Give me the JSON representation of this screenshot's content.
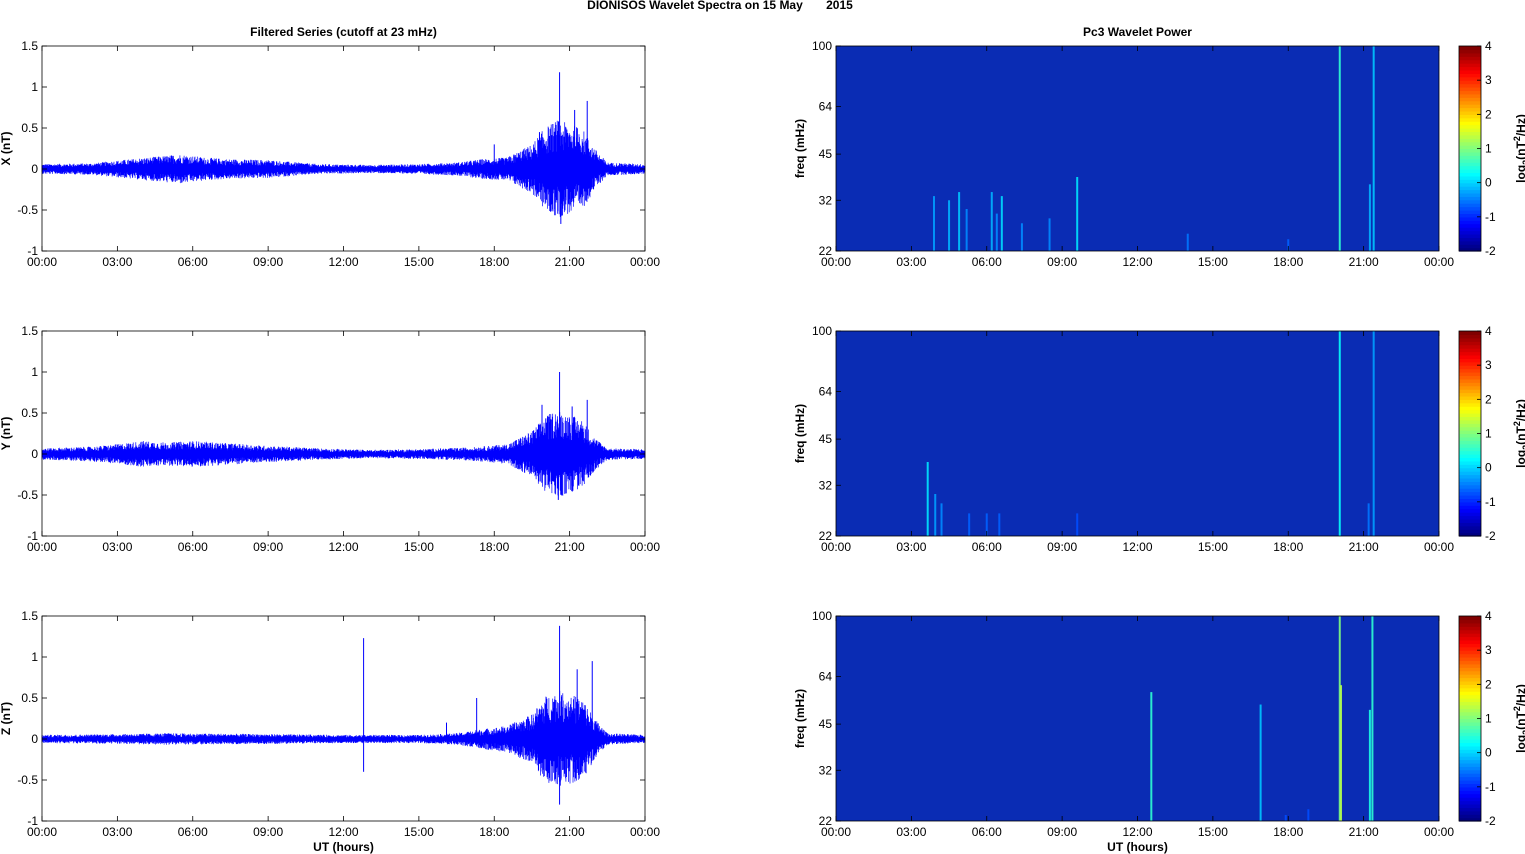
{
  "figure": {
    "title": "DIONISOS Wavelet Spectra on 15 May       2015"
  },
  "chart_data": [
    {
      "type": "line",
      "title": "Filtered Series (cutoff at 23 mHz)",
      "ylabel": "X (nT)",
      "xlabel": "",
      "xlim": [
        0,
        24
      ],
      "ylim": [
        -1,
        1.5
      ],
      "yticks": [
        "-1",
        "-0.5",
        "0",
        "0.5",
        "1",
        "1.5"
      ],
      "xticks": [
        "00:00",
        "03:00",
        "06:00",
        "09:00",
        "12:00",
        "15:00",
        "18:00",
        "21:00",
        "00:00"
      ],
      "grid": false,
      "series": [
        {
          "color": "#0000ff",
          "envelope": [
            [
              0,
              0.06
            ],
            [
              2,
              0.07
            ],
            [
              3.5,
              0.12
            ],
            [
              4.5,
              0.15
            ],
            [
              5.5,
              0.18
            ],
            [
              6.5,
              0.14
            ],
            [
              7.5,
              0.12
            ],
            [
              9,
              0.11
            ],
            [
              11,
              0.06
            ],
            [
              13,
              0.05
            ],
            [
              15,
              0.06
            ],
            [
              16.5,
              0.08
            ],
            [
              17.5,
              0.12
            ],
            [
              18.5,
              0.14
            ],
            [
              19.5,
              0.3
            ],
            [
              20,
              0.5
            ],
            [
              20.5,
              0.6
            ],
            [
              21,
              0.55
            ],
            [
              21.5,
              0.5
            ],
            [
              22,
              0.25
            ],
            [
              22.5,
              0.08
            ],
            [
              24,
              0.06
            ]
          ],
          "spikes": [
            [
              20.6,
              1.18
            ],
            [
              20.65,
              -0.67
            ],
            [
              21.7,
              0.83
            ],
            [
              21.2,
              0.72
            ],
            [
              19.8,
              0.45
            ],
            [
              18,
              0.3
            ]
          ]
        }
      ]
    },
    {
      "type": "heatmap",
      "title": "Pc3 Wavelet Power",
      "ylabel": "freq (mHz)",
      "xlabel": "",
      "xlim": [
        0,
        24
      ],
      "ylim": [
        22,
        100
      ],
      "yscale": "log",
      "yticks": [
        "22",
        "32",
        "45",
        "64",
        "100"
      ],
      "xticks": [
        "00:00",
        "03:00",
        "06:00",
        "09:00",
        "12:00",
        "15:00",
        "18:00",
        "21:00",
        "00:00"
      ],
      "colorbar": {
        "label": "log2(nT2/Hz)",
        "range": [
          -2,
          4
        ],
        "ticks": [
          "-2",
          "-1",
          "0",
          "1",
          "2",
          "3",
          "4"
        ]
      },
      "streaks": [
        [
          3.9,
          33,
          0.28
        ],
        [
          4.5,
          32,
          0.3
        ],
        [
          4.9,
          34,
          0.32
        ],
        [
          5.2,
          30,
          0.26
        ],
        [
          6.2,
          34,
          0.3
        ],
        [
          6.6,
          33,
          0.34
        ],
        [
          6.4,
          29,
          0.26
        ],
        [
          7.4,
          27,
          0.26
        ],
        [
          8.5,
          28,
          0.26
        ],
        [
          9.6,
          38,
          0.35
        ],
        [
          14.0,
          25,
          0.24
        ],
        [
          18.0,
          24,
          0.22
        ],
        [
          20.05,
          100,
          0.42
        ],
        [
          21.4,
          100,
          0.32
        ],
        [
          21.25,
          36,
          0.3
        ]
      ]
    },
    {
      "type": "line",
      "title": "",
      "ylabel": "Y (nT)",
      "xlabel": "",
      "xlim": [
        0,
        24
      ],
      "ylim": [
        -1,
        1.5
      ],
      "yticks": [
        "-1",
        "-0.5",
        "0",
        "0.5",
        "1",
        "1.5"
      ],
      "xticks": [
        "00:00",
        "03:00",
        "06:00",
        "09:00",
        "12:00",
        "15:00",
        "18:00",
        "21:00",
        "00:00"
      ],
      "grid": false,
      "series": [
        {
          "color": "#0000ff",
          "envelope": [
            [
              0,
              0.07
            ],
            [
              2,
              0.09
            ],
            [
              3,
              0.12
            ],
            [
              4,
              0.16
            ],
            [
              5,
              0.14
            ],
            [
              6,
              0.16
            ],
            [
              7,
              0.14
            ],
            [
              8,
              0.12
            ],
            [
              9,
              0.1
            ],
            [
              11,
              0.07
            ],
            [
              13,
              0.05
            ],
            [
              15,
              0.06
            ],
            [
              17,
              0.08
            ],
            [
              18.5,
              0.12
            ],
            [
              19.5,
              0.28
            ],
            [
              20,
              0.45
            ],
            [
              20.5,
              0.55
            ],
            [
              21,
              0.48
            ],
            [
              21.5,
              0.42
            ],
            [
              22,
              0.2
            ],
            [
              22.5,
              0.07
            ],
            [
              24,
              0.06
            ]
          ],
          "spikes": [
            [
              20.6,
              1.0
            ],
            [
              20.55,
              -0.56
            ],
            [
              21.7,
              0.66
            ],
            [
              21.1,
              0.58
            ],
            [
              19.9,
              0.6
            ]
          ]
        }
      ]
    },
    {
      "type": "heatmap",
      "title": "",
      "ylabel": "freq (mHz)",
      "xlabel": "",
      "xlim": [
        0,
        24
      ],
      "ylim": [
        22,
        100
      ],
      "yscale": "log",
      "yticks": [
        "22",
        "32",
        "45",
        "64",
        "100"
      ],
      "xticks": [
        "00:00",
        "03:00",
        "06:00",
        "09:00",
        "12:00",
        "15:00",
        "18:00",
        "21:00",
        "00:00"
      ],
      "colorbar": {
        "label": "log2(nT2/Hz)",
        "range": [
          -2,
          4
        ],
        "ticks": [
          "-2",
          "-1",
          "0",
          "1",
          "2",
          "3",
          "4"
        ]
      },
      "streaks": [
        [
          3.65,
          38,
          0.35
        ],
        [
          3.95,
          30,
          0.28
        ],
        [
          4.2,
          28,
          0.26
        ],
        [
          5.3,
          26,
          0.22
        ],
        [
          6.0,
          26,
          0.22
        ],
        [
          6.5,
          26,
          0.22
        ],
        [
          9.6,
          26,
          0.2
        ],
        [
          20.05,
          100,
          0.38
        ],
        [
          21.4,
          100,
          0.28
        ],
        [
          21.2,
          28,
          0.24
        ]
      ]
    },
    {
      "type": "line",
      "title": "",
      "ylabel": "Z (nT)",
      "xlabel": "UT (hours)",
      "xlim": [
        0,
        24
      ],
      "ylim": [
        -1,
        1.5
      ],
      "yticks": [
        "-1",
        "-0.5",
        "0",
        "0.5",
        "1",
        "1.5"
      ],
      "xticks": [
        "00:00",
        "03:00",
        "06:00",
        "09:00",
        "12:00",
        "15:00",
        "18:00",
        "21:00",
        "00:00"
      ],
      "grid": false,
      "series": [
        {
          "color": "#0000ff",
          "envelope": [
            [
              0,
              0.05
            ],
            [
              3,
              0.06
            ],
            [
              5,
              0.07
            ],
            [
              9,
              0.06
            ],
            [
              12,
              0.05
            ],
            [
              15,
              0.05
            ],
            [
              16.5,
              0.07
            ],
            [
              17.5,
              0.12
            ],
            [
              18.5,
              0.16
            ],
            [
              19.5,
              0.3
            ],
            [
              20,
              0.52
            ],
            [
              20.5,
              0.6
            ],
            [
              21,
              0.55
            ],
            [
              21.5,
              0.5
            ],
            [
              22,
              0.25
            ],
            [
              22.5,
              0.07
            ],
            [
              24,
              0.05
            ]
          ],
          "spikes": [
            [
              12.8,
              1.23
            ],
            [
              12.8,
              -0.4
            ],
            [
              20.6,
              1.38
            ],
            [
              20.6,
              -0.8
            ],
            [
              21.9,
              0.95
            ],
            [
              21.3,
              0.85
            ],
            [
              17.3,
              0.5
            ],
            [
              16.1,
              0.2
            ]
          ]
        }
      ]
    },
    {
      "type": "heatmap",
      "title": "",
      "ylabel": "freq (mHz)",
      "xlabel": "UT (hours)",
      "xlim": [
        0,
        24
      ],
      "ylim": [
        22,
        100
      ],
      "yscale": "log",
      "yticks": [
        "22",
        "32",
        "45",
        "64",
        "100"
      ],
      "xticks": [
        "00:00",
        "03:00",
        "06:00",
        "09:00",
        "12:00",
        "15:00",
        "18:00",
        "21:00",
        "00:00"
      ],
      "colorbar": {
        "label": "log2(nT2/Hz)",
        "range": [
          -2,
          4
        ],
        "ticks": [
          "-2",
          "-1",
          "0",
          "1",
          "2",
          "3",
          "4"
        ]
      },
      "streaks": [
        [
          12.55,
          57,
          0.42
        ],
        [
          16.9,
          52,
          0.32
        ],
        [
          20.05,
          100,
          0.5
        ],
        [
          20.1,
          60,
          0.55
        ],
        [
          21.35,
          100,
          0.42
        ],
        [
          21.25,
          50,
          0.4
        ],
        [
          18.8,
          24,
          0.2
        ],
        [
          17.9,
          23,
          0.2
        ]
      ]
    }
  ]
}
